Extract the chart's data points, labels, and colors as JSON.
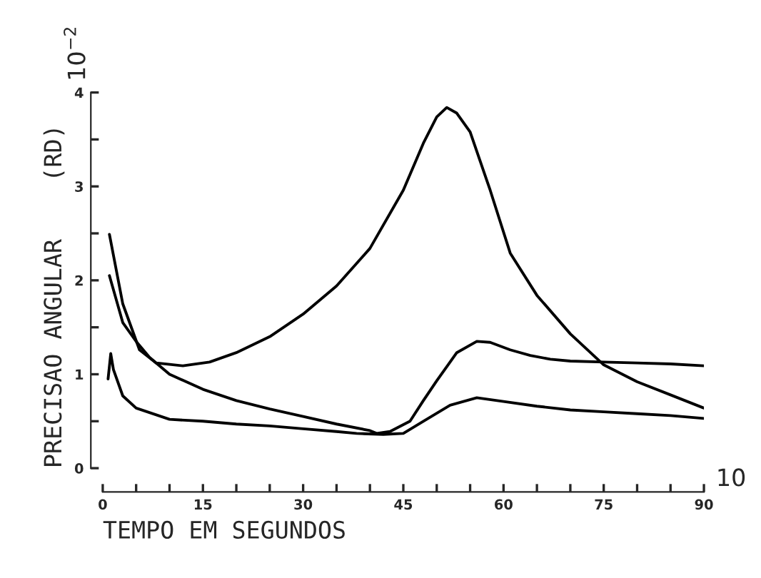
{
  "chart_data": {
    "type": "line",
    "xlabel": "TEMPO EM SEGUNDOS",
    "ylabel": "PRECISAO ANGULAR    (RD)",
    "annotations": [
      "10$^{−2}$",
      "10"
    ],
    "xlim": [
      0,
      90
    ],
    "ylim": [
      0,
      4
    ],
    "xticks": [
      0,
      {
        "value": 5,
        "label": null
      },
      {
        "value": 10,
        "label": null
      },
      15,
      {
        "value": 20,
        "label": null
      },
      {
        "value": 25,
        "label": null
      },
      30,
      {
        "value": 35,
        "label": null
      },
      {
        "value": 40,
        "label": null
      },
      45,
      {
        "value": 50,
        "label": null
      },
      {
        "value": 55,
        "label": null
      },
      60,
      {
        "value": 65,
        "label": null
      },
      {
        "value": 70,
        "label": null
      },
      75,
      {
        "value": 80,
        "label": null
      },
      {
        "value": 85,
        "label": null
      },
      90
    ],
    "yticks": [
      0,
      {
        "value": 0.5,
        "label": null
      },
      1,
      {
        "value": 1.5,
        "label": null
      },
      2,
      {
        "value": 2.5,
        "label": null
      },
      3,
      {
        "value": 3.5,
        "label": null
      },
      4
    ],
    "grid": false,
    "legend": false,
    "line_style": "solid",
    "marker": "none",
    "series": [
      {
        "color": "#000000",
        "x": [
          1,
          3,
          5.5,
          8,
          12,
          16,
          20,
          25,
          30,
          35,
          40,
          45,
          48,
          50,
          51.5,
          53,
          55,
          58,
          61,
          65,
          70,
          75,
          80,
          85,
          90
        ],
        "values": [
          2.49,
          1.75,
          1.26,
          1.12,
          1.09,
          1.13,
          1.23,
          1.4,
          1.64,
          1.94,
          2.34,
          2.96,
          3.46,
          3.74,
          3.84,
          3.78,
          3.58,
          2.96,
          2.29,
          1.84,
          1.43,
          1.1,
          0.92,
          0.78,
          0.64
        ]
      },
      {
        "color": "#000000",
        "x": [
          1,
          3,
          5,
          7,
          10,
          15,
          20,
          25,
          30,
          35,
          40,
          41,
          43,
          46,
          48,
          50,
          53,
          56,
          58,
          61,
          64,
          67,
          70,
          75,
          80,
          85,
          90
        ],
        "values": [
          2.05,
          1.55,
          1.35,
          1.18,
          1.0,
          0.84,
          0.72,
          0.63,
          0.55,
          0.47,
          0.4,
          0.37,
          0.39,
          0.5,
          0.72,
          0.93,
          1.23,
          1.35,
          1.34,
          1.26,
          1.2,
          1.16,
          1.14,
          1.13,
          1.12,
          1.11,
          1.09
        ]
      },
      {
        "color": "#000000",
        "x": [
          0.8,
          1.2,
          1.6,
          3,
          5,
          10,
          15,
          20,
          25,
          30,
          35,
          38,
          42,
          45,
          48,
          52,
          56,
          60,
          65,
          70,
          75,
          80,
          85,
          90
        ],
        "values": [
          0.95,
          1.22,
          1.05,
          0.77,
          0.64,
          0.52,
          0.5,
          0.47,
          0.45,
          0.42,
          0.39,
          0.37,
          0.36,
          0.37,
          0.5,
          0.67,
          0.75,
          0.71,
          0.66,
          0.62,
          0.6,
          0.58,
          0.56,
          0.53
        ]
      }
    ]
  }
}
